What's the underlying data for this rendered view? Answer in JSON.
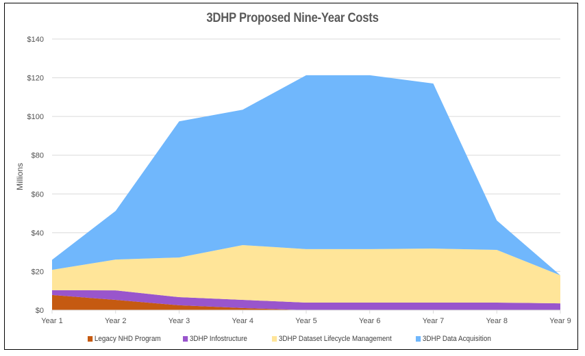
{
  "chart_data": {
    "type": "area",
    "stacked": true,
    "title": "3DHP Proposed Nine-Year Costs",
    "xlabel": "",
    "ylabel": "Millions",
    "categories": [
      "Year 1",
      "Year 2",
      "Year 3",
      "Year 4",
      "Year 5",
      "Year 6",
      "Year 7",
      "Year 8",
      "Year 9"
    ],
    "ylim": [
      0,
      140
    ],
    "yticks": [
      0,
      20,
      40,
      60,
      80,
      100,
      120,
      140
    ],
    "ytick_labels": [
      "$0",
      "$20",
      "$40",
      "$60",
      "$80",
      "$100",
      "$120",
      "$140"
    ],
    "grid": true,
    "legend_position": "bottom",
    "series": [
      {
        "name": "Legacy NHD Program",
        "color": "#c55a11",
        "values": [
          7.8,
          5.3,
          2.5,
          1.1,
          0,
          0,
          0,
          0,
          0
        ]
      },
      {
        "name": "3DHP Infostructure",
        "color": "#9955cc",
        "values": [
          2.5,
          4.9,
          4.2,
          4.2,
          3.9,
          3.9,
          3.9,
          3.9,
          3.5
        ]
      },
      {
        "name": "3DHP Dataset Lifecycle Management",
        "color": "#ffe599",
        "values": [
          10.5,
          15.9,
          20.5,
          28.3,
          27.6,
          27.6,
          27.9,
          27.2,
          14.5
        ]
      },
      {
        "name": "3DHP Data Acquisition",
        "color": "#70b7fc",
        "values": [
          5.2,
          25.1,
          70.3,
          69.9,
          89.8,
          89.8,
          85.2,
          15.2,
          0
        ]
      }
    ]
  }
}
